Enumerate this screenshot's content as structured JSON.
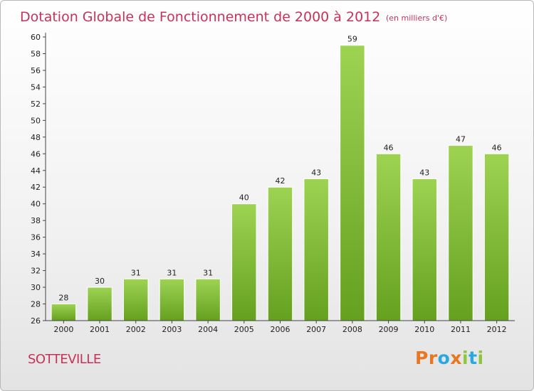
{
  "chart_data": {
    "type": "bar",
    "title": "Dotation Globale de Fonctionnement de 2000 à 2012",
    "subtitle": "(en milliers d'€)",
    "categories": [
      "2000",
      "2001",
      "2002",
      "2003",
      "2004",
      "2005",
      "2006",
      "2007",
      "2008",
      "2009",
      "2010",
      "2011",
      "2012"
    ],
    "values": [
      28,
      30,
      31,
      31,
      31,
      40,
      42,
      43,
      59,
      46,
      43,
      47,
      46
    ],
    "ylim": [
      26,
      60
    ],
    "yticks": [
      26,
      28,
      30,
      32,
      34,
      36,
      38,
      40,
      42,
      44,
      46,
      48,
      50,
      52,
      54,
      56,
      58,
      60
    ],
    "grid": false,
    "bar_color": "#8cc63f",
    "bar_color_dark": "#6aa322"
  },
  "place": "SOTTEVILLE",
  "logo": {
    "letters": [
      "P",
      "r",
      "o",
      "x",
      "i",
      "t",
      "i"
    ],
    "colors": [
      "#e87722",
      "#e87722",
      "#2aa8e0",
      "#e87722",
      "#8cc63f",
      "#2aa8e0",
      "#8cc63f"
    ]
  }
}
